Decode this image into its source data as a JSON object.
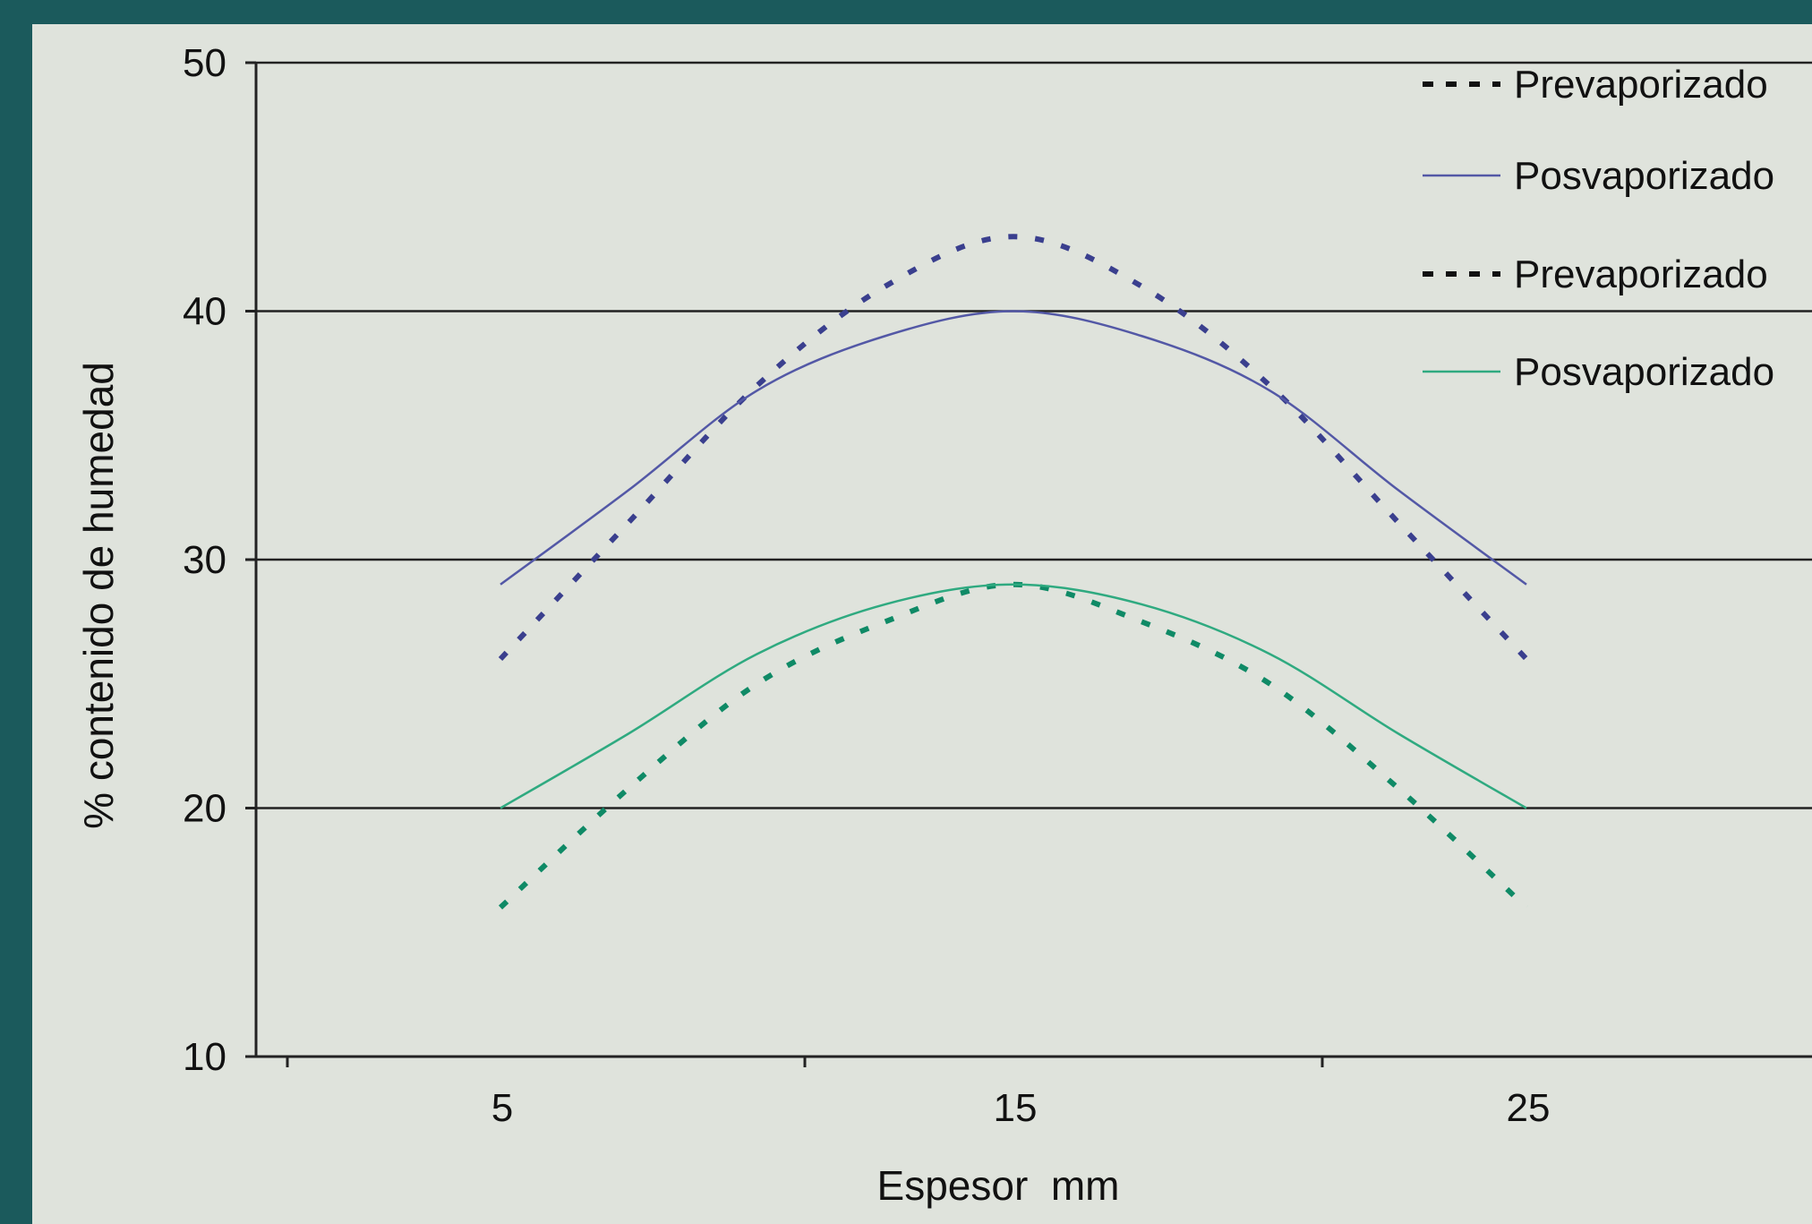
{
  "chart_data": {
    "type": "line",
    "xlabel": "Espesor  mm",
    "ylabel": "% contenido de humedad",
    "xlim": [
      0,
      25
    ],
    "ylim": [
      10,
      50
    ],
    "x_ticks": [
      5,
      15,
      25
    ],
    "y_ticks": [
      10,
      20,
      30,
      40,
      50
    ],
    "grid": "horizontal",
    "legend_position": "top-right",
    "x": [
      5,
      7.5,
      10,
      12.5,
      15,
      17.5,
      20,
      22.5,
      25
    ],
    "series": [
      {
        "name": "Prevaporizado",
        "color": "#3a3f8e",
        "dash": true,
        "values": [
          26,
          31.5,
          37,
          41,
          43,
          41,
          37,
          31.5,
          26
        ]
      },
      {
        "name": "Posvaporizado",
        "color": "#5358a6",
        "dash": false,
        "values": [
          29,
          32.8,
          36.8,
          39,
          40,
          39,
          36.8,
          32.8,
          29
        ]
      },
      {
        "name": "Prevaporizado",
        "color": "#0f8a66",
        "dash": true,
        "values": [
          16,
          20.8,
          25,
          27.5,
          29,
          27.5,
          25,
          20.8,
          16
        ]
      },
      {
        "name": "Posvaporizado",
        "color": "#2faa80",
        "dash": false,
        "values": [
          20,
          23,
          26.2,
          28.2,
          29,
          28.2,
          26.2,
          23,
          20
        ]
      }
    ]
  }
}
